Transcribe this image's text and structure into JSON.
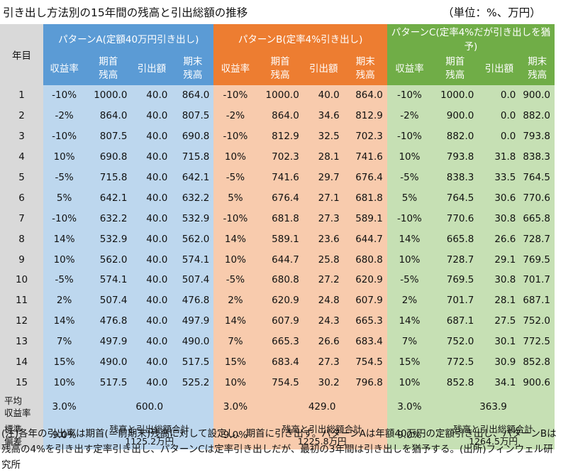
{
  "title": "引き出し方法別の15年間の残高と引出総額の推移",
  "unit": "（単位：%、万円）",
  "table": {
    "year_header": "年目",
    "groups": [
      "パターンA(定額40万円引き出し)",
      "パターンB(定率4%引き出し)",
      "パターンC(定率4%だが引き出しを猶予)"
    ],
    "subheaders": [
      "収益率",
      "期首\n残高",
      "引出額",
      "期末\n残高"
    ],
    "rows": [
      {
        "year": "1",
        "a": [
          "-10%",
          "1000.0",
          "40.0",
          "864.0"
        ],
        "b": [
          "-10%",
          "1000.0",
          "40.0",
          "864.0"
        ],
        "c": [
          "-10%",
          "1000.0",
          "0.0",
          "900.0"
        ]
      },
      {
        "year": "2",
        "a": [
          "-2%",
          "864.0",
          "40.0",
          "807.5"
        ],
        "b": [
          "-2%",
          "864.0",
          "34.6",
          "812.9"
        ],
        "c": [
          "-2%",
          "900.0",
          "0.0",
          "882.0"
        ]
      },
      {
        "year": "3",
        "a": [
          "-10%",
          "807.5",
          "40.0",
          "690.8"
        ],
        "b": [
          "-10%",
          "812.9",
          "32.5",
          "702.3"
        ],
        "c": [
          "-10%",
          "882.0",
          "0.0",
          "793.8"
        ]
      },
      {
        "year": "4",
        "a": [
          "10%",
          "690.8",
          "40.0",
          "715.8"
        ],
        "b": [
          "10%",
          "702.3",
          "28.1",
          "741.6"
        ],
        "c": [
          "10%",
          "793.8",
          "31.8",
          "838.3"
        ]
      },
      {
        "year": "5",
        "a": [
          "-5%",
          "715.8",
          "40.0",
          "642.1"
        ],
        "b": [
          "-5%",
          "741.6",
          "29.7",
          "676.4"
        ],
        "c": [
          "-5%",
          "838.3",
          "33.5",
          "764.5"
        ]
      },
      {
        "year": "6",
        "a": [
          "5%",
          "642.1",
          "40.0",
          "632.2"
        ],
        "b": [
          "5%",
          "676.4",
          "27.1",
          "681.8"
        ],
        "c": [
          "5%",
          "764.5",
          "30.6",
          "770.6"
        ]
      },
      {
        "year": "7",
        "a": [
          "-10%",
          "632.2",
          "40.0",
          "532.9"
        ],
        "b": [
          "-10%",
          "681.8",
          "27.3",
          "589.1"
        ],
        "c": [
          "-10%",
          "770.6",
          "30.8",
          "665.8"
        ]
      },
      {
        "year": "8",
        "a": [
          "14%",
          "532.9",
          "40.0",
          "562.0"
        ],
        "b": [
          "14%",
          "589.1",
          "23.6",
          "644.7"
        ],
        "c": [
          "14%",
          "665.8",
          "26.6",
          "728.7"
        ]
      },
      {
        "year": "9",
        "a": [
          "10%",
          "562.0",
          "40.0",
          "574.1"
        ],
        "b": [
          "10%",
          "644.7",
          "25.8",
          "680.8"
        ],
        "c": [
          "10%",
          "728.7",
          "29.1",
          "769.5"
        ]
      },
      {
        "year": "10",
        "a": [
          "-5%",
          "574.1",
          "40.0",
          "507.4"
        ],
        "b": [
          "-5%",
          "680.8",
          "27.2",
          "620.9"
        ],
        "c": [
          "-5%",
          "769.5",
          "30.8",
          "701.7"
        ]
      },
      {
        "year": "11",
        "a": [
          "2%",
          "507.4",
          "40.0",
          "476.8"
        ],
        "b": [
          "2%",
          "620.9",
          "24.8",
          "607.9"
        ],
        "c": [
          "2%",
          "701.7",
          "28.1",
          "687.1"
        ]
      },
      {
        "year": "12",
        "a": [
          "14%",
          "476.8",
          "40.0",
          "497.9"
        ],
        "b": [
          "14%",
          "607.9",
          "24.3",
          "665.3"
        ],
        "c": [
          "14%",
          "687.1",
          "27.5",
          "752.0"
        ]
      },
      {
        "year": "13",
        "a": [
          "7%",
          "497.9",
          "40.0",
          "490.0"
        ],
        "b": [
          "7%",
          "665.3",
          "26.6",
          "683.4"
        ],
        "c": [
          "7%",
          "752.0",
          "30.1",
          "772.5"
        ]
      },
      {
        "year": "14",
        "a": [
          "15%",
          "490.0",
          "40.0",
          "517.5"
        ],
        "b": [
          "15%",
          "683.4",
          "27.3",
          "754.5"
        ],
        "c": [
          "15%",
          "772.5",
          "30.9",
          "852.8"
        ]
      },
      {
        "year": "15",
        "a": [
          "10%",
          "517.5",
          "40.0",
          "525.2"
        ],
        "b": [
          "10%",
          "754.5",
          "30.2",
          "796.8"
        ],
        "c": [
          "10%",
          "852.8",
          "34.1",
          "900.6"
        ]
      }
    ],
    "avg": {
      "label": "平均\n収益率",
      "a_rate": "3.0%",
      "a_total": "600.0",
      "b_rate": "3.0%",
      "b_total": "429.0",
      "c_rate": "3.0%",
      "c_total": "363.9"
    },
    "std": {
      "label": "標準\n偏差",
      "a_rate": "9.0%",
      "a_sum": "残高と引出総額合計\n1125.2万円",
      "b_rate": "9.0%",
      "b_sum": "残高と引出総額合計\n1225.8万円",
      "c_rate": "9.0%",
      "c_sum": "残高と引出総額合計\n1264.5万円"
    }
  },
  "note": "(注)各年の引出率は期首(＝前期末)残高に対して設定し、期首に引き出す。パターンAは年額40万円の定額引き出し、パターンBは残高の4%を引き出す定率引き出し、パターンCは定率引き出しだが、最初の3年間は引き出しを猶予する。(出所)フィンウェル研究所",
  "colors": {
    "pattern_a_header": "#5b9bd5",
    "pattern_a_body": "#bdd7ee",
    "pattern_b_header": "#ed7d31",
    "pattern_b_body": "#f8cbad",
    "pattern_c_header": "#70ad47",
    "pattern_c_body": "#c6e0b4",
    "year_column": "#d9d9d9"
  }
}
